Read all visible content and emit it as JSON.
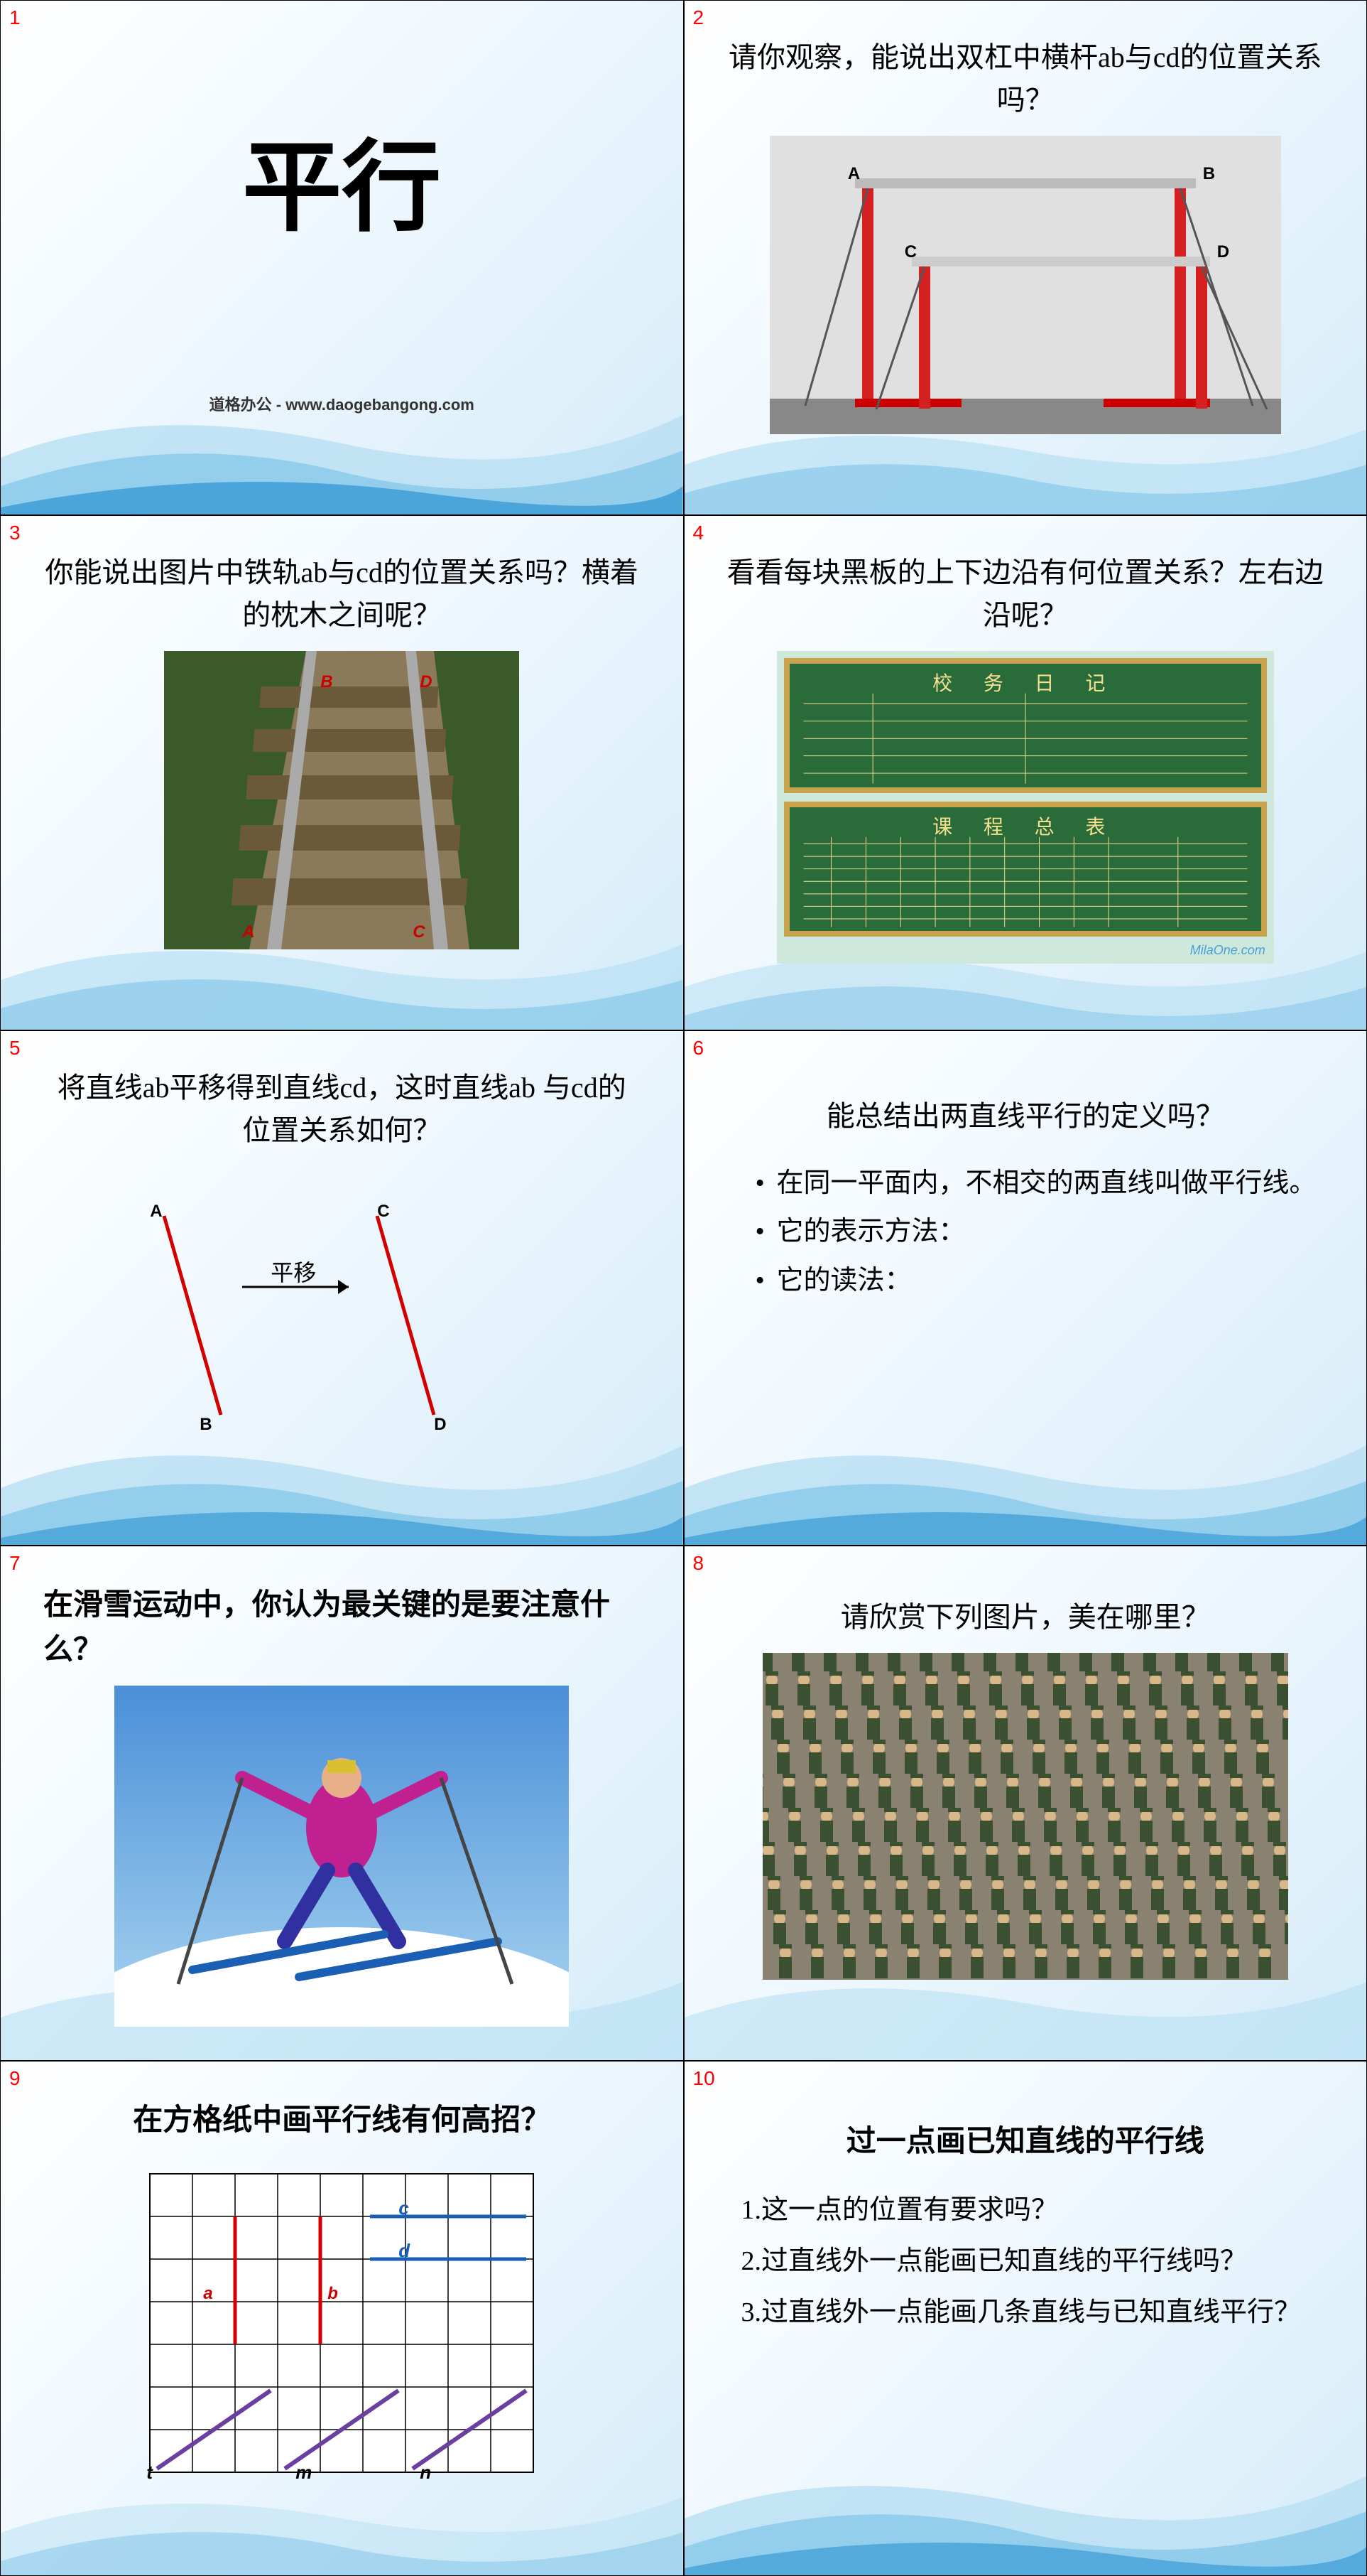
{
  "slides": {
    "s1": {
      "num": "1",
      "title": "平行",
      "footer": "道格办公 - www.daogebangong.com"
    },
    "s2": {
      "num": "2",
      "heading": "请你观察，能说出双杠中横杆ab与cd的位置关系吗？",
      "labels": {
        "A": "A",
        "B": "B",
        "C": "C",
        "D": "D"
      }
    },
    "s3": {
      "num": "3",
      "heading": "你能说出图片中铁轨ab与cd的位置关系吗？横着的枕木之间呢？",
      "labels": {
        "A": "A",
        "B": "B",
        "C": "C",
        "D": "D"
      }
    },
    "s4": {
      "num": "4",
      "heading": "看看每块黑板的上下边沿有何位置关系？左右边沿呢？",
      "board1_title": "校 务 日 记",
      "board2_title": "课 程 总 表",
      "watermark": "MilaOne.com"
    },
    "s5": {
      "num": "5",
      "heading": "将直线ab平移得到直线cd，这时直线ab 与cd的位置关系如何？",
      "translate_label": "平移",
      "labels": {
        "A": "A",
        "B": "B",
        "C": "C",
        "D": "D"
      }
    },
    "s6": {
      "num": "6",
      "heading": "能总结出两直线平行的定义吗？",
      "bullets": [
        "在同一平面内，不相交的两直线叫做平行线。",
        "它的表示方法：",
        "它的读法："
      ]
    },
    "s7": {
      "num": "7",
      "heading": "在滑雪运动中，你认为最关键的是要注意什么？"
    },
    "s8": {
      "num": "8",
      "heading": "请欣赏下列图片，美在哪里？"
    },
    "s9": {
      "num": "9",
      "heading": "在方格纸中画平行线有何高招？",
      "labels": {
        "a": "a",
        "b": "b",
        "c": "c",
        "d": "d",
        "t": "t",
        "m": "m",
        "n": "n"
      }
    },
    "s10": {
      "num": "10",
      "heading": "过一点画已知直线的平行线",
      "items": [
        "1.这一点的位置有要求吗？",
        "2.过直线外一点能画已知直线的平行线吗？",
        "3.过直线外一点能画几条直线与已知直线平行？"
      ]
    }
  },
  "colors": {
    "slide_num": "#ff0000",
    "bg_light": "#ffffff",
    "bg_blue": "#d4ecf9",
    "wave1": "#3b9bd6",
    "wave2": "#7fc4e8",
    "wave3": "#b8dff3",
    "line_red": "#d40000",
    "line_blue": "#1a5fb4",
    "line_purple": "#6b3fa0",
    "grid_line": "#000000",
    "board_green": "#2a6b3a",
    "board_frame": "#c9a34e"
  }
}
